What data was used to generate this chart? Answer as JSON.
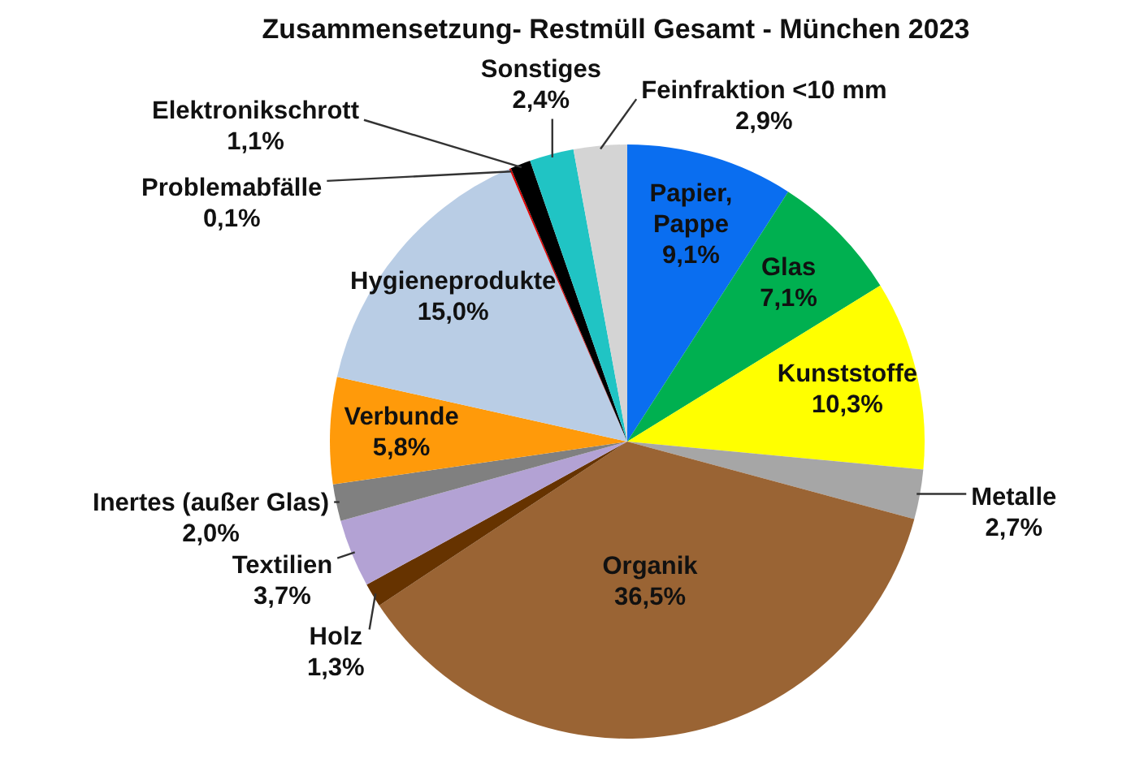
{
  "chart_data": {
    "type": "pie",
    "title": "Zusammensetzung- Restmüll Gesamt - München 2023",
    "categories": [
      "Papier, Pappe",
      "Glas",
      "Kunststoffe",
      "Metalle",
      "Organik",
      "Holz",
      "Textilien",
      "Inertes (außer Glas)",
      "Verbunde",
      "Hygieneprodukte",
      "Problemabfälle",
      "Elektronikschrott",
      "Sonstiges",
      "Feinfraktion <10 mm"
    ],
    "values": [
      9.1,
      7.1,
      10.3,
      2.7,
      36.5,
      1.3,
      3.7,
      2.0,
      5.8,
      15.0,
      0.1,
      1.1,
      2.4,
      2.9
    ],
    "colors": [
      "#0a6ef0",
      "#00b050",
      "#ffff00",
      "#a6a6a6",
      "#9a6434",
      "#663300",
      "#b3a2d4",
      "#808080",
      "#ff9a0a",
      "#b9cde5",
      "#e00000",
      "#000000",
      "#20c4c4",
      "#d4d4d4"
    ],
    "value_labels": [
      "9,1%",
      "7,1%",
      "10,3%",
      "2,7%",
      "36,5%",
      "1,3%",
      "3,7%",
      "2,0%",
      "5,8%",
      "15,0%",
      "0,1%",
      "1,1%",
      "2,4%",
      "2,9%"
    ],
    "legend": false
  }
}
